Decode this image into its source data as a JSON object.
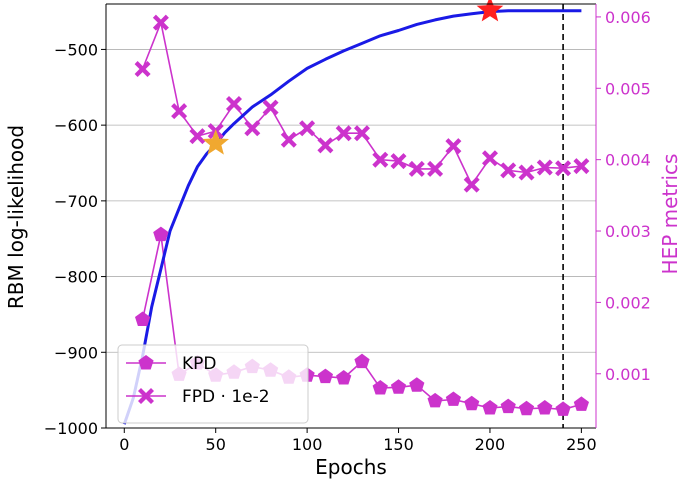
{
  "chart_data": {
    "type": "line",
    "xlabel": "Epochs",
    "ylabel_left": "RBM log-likelihood",
    "ylabel_right": "HEP metrics",
    "xlim": [
      -10,
      258
    ],
    "ylim_left": [
      -1000,
      -440
    ],
    "ylim_right": [
      0.00024,
      0.006181
    ],
    "x_ticks": [
      0,
      50,
      100,
      150,
      200,
      250
    ],
    "y_left_ticks": [
      -1000,
      -900,
      -800,
      -700,
      -600,
      -500
    ],
    "y_right_ticks": [
      "0.001",
      "0.002",
      "0.003",
      "0.004",
      "0.005",
      "0.006"
    ],
    "right_axis_color": "#cc33cc",
    "series_color_metrics": "#cc33cc",
    "series_color_llh": "#1a1ae6",
    "vline_x": 240,
    "grid": "horizontal (left axis)",
    "legend_position": "lower-left",
    "series": [
      {
        "name": "KPD",
        "axis": "right",
        "marker": "pentagon",
        "x": [
          10,
          20,
          30,
          40,
          50,
          60,
          70,
          80,
          90,
          100,
          110,
          120,
          130,
          140,
          150,
          160,
          170,
          180,
          190,
          200,
          210,
          220,
          230,
          240,
          250
        ],
        "values": [
          0.00176,
          0.00295,
          0.00099,
          0.00115,
          0.00098,
          0.00102,
          0.0011,
          0.00105,
          0.00095,
          0.00098,
          0.00096,
          0.00094,
          0.00117,
          0.0008,
          0.00081,
          0.00084,
          0.00062,
          0.00064,
          0.00058,
          0.00052,
          0.00054,
          0.00051,
          0.00052,
          0.0005,
          0.00057
        ]
      },
      {
        "name": "FPD · 1e-2",
        "axis": "right",
        "marker": "X",
        "x": [
          10,
          20,
          30,
          40,
          50,
          60,
          70,
          80,
          90,
          100,
          110,
          120,
          130,
          140,
          150,
          160,
          170,
          180,
          190,
          200,
          210,
          220,
          230,
          240,
          250
        ],
        "values": [
          0.00527,
          0.00592,
          0.00468,
          0.00433,
          0.0044,
          0.00478,
          0.00444,
          0.00473,
          0.00428,
          0.00444,
          0.0042,
          0.00437,
          0.00437,
          0.004,
          0.00398,
          0.00387,
          0.00387,
          0.00419,
          0.00365,
          0.00402,
          0.00385,
          0.00382,
          0.00389,
          0.00388,
          0.00391
        ]
      },
      {
        "name": "",
        "axis": "left",
        "line_only": true,
        "x": [
          0,
          5,
          10,
          15,
          20,
          25,
          30,
          35,
          40,
          45,
          50,
          55,
          60,
          70,
          80,
          90,
          100,
          110,
          120,
          130,
          140,
          150,
          160,
          170,
          180,
          190,
          200,
          210,
          220,
          230,
          240,
          250
        ],
        "values": [
          -995,
          -960,
          -905,
          -840,
          -790,
          -740,
          -710,
          -680,
          -655,
          -638,
          -625,
          -610,
          -598,
          -576,
          -560,
          -542,
          -525,
          -513,
          -502,
          -492,
          -482,
          -475,
          -467,
          -461,
          -456,
          -453,
          -450,
          -449,
          -449,
          -449,
          -449,
          -449
        ]
      }
    ],
    "annotations": [
      {
        "marker": "star",
        "color": "#f0a830",
        "x": 50,
        "y_left": -624
      },
      {
        "marker": "star",
        "color": "#ff2020",
        "x": 200,
        "y_left": -448
      }
    ]
  }
}
